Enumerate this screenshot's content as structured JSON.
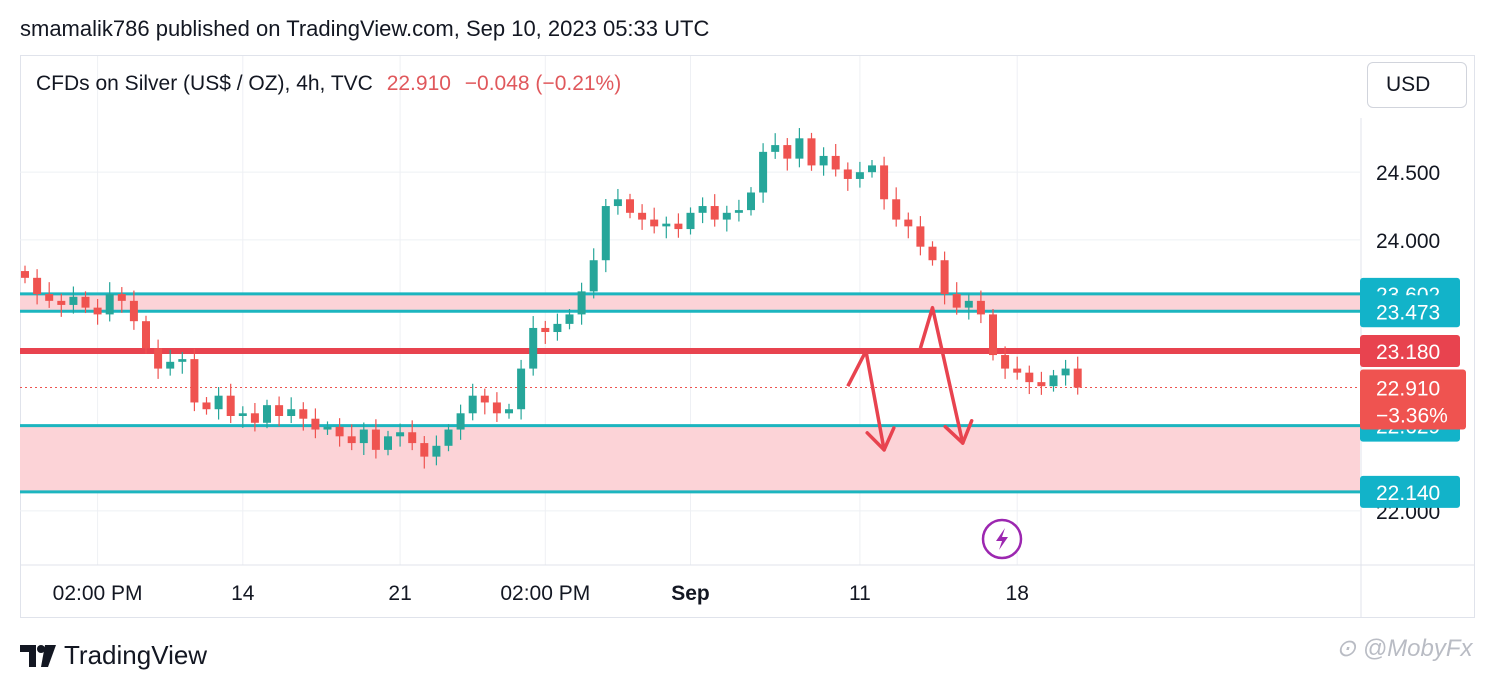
{
  "header": {
    "text": "smamalik786 published on TradingView.com, Sep 10, 2023 05:33 UTC"
  },
  "legend": {
    "symbol": "CFDs on Silver (US$ / OZ), 4h, TVC",
    "price": "22.910",
    "change": "−0.048 (−0.21%)"
  },
  "currency_button": "USD",
  "footer": {
    "brand": "TradingView",
    "watermark": "⊙ @MobyFx"
  },
  "colors": {
    "up": "#26a69a",
    "down": "#ef5350",
    "zone_fill": "#fcd3d7",
    "zone_line": "#1cb5bf",
    "resistance": "#e8434f",
    "label_teal": "#12b3c9",
    "label_red": "#e8434f",
    "lightning": "#9c27b0"
  },
  "chart_data": {
    "type": "candlestick",
    "title": "CFDs on Silver (US$ / OZ), 4h, TVC",
    "ylim": [
      21.6,
      24.9
    ],
    "y_ticks": [
      "24.500",
      "24.000",
      "22.000"
    ],
    "x_ticks": [
      "02:00 PM",
      "14",
      "21",
      "02:00 PM",
      "Sep",
      "11",
      "18"
    ],
    "grid": true,
    "current_price": 22.91,
    "current_change_label": "−3.36%",
    "price_labels": [
      {
        "value": 23.602,
        "text": "23.602",
        "kind": "zone"
      },
      {
        "value": 23.473,
        "text": "23.473",
        "kind": "zone"
      },
      {
        "value": 23.18,
        "text": "23.180",
        "kind": "resistance"
      },
      {
        "value": 22.629,
        "text": "22.629",
        "kind": "zone"
      },
      {
        "value": 22.14,
        "text": "22.140",
        "kind": "zone"
      }
    ],
    "zones": [
      {
        "top": 23.602,
        "bottom": 23.473
      },
      {
        "top": 22.629,
        "bottom": 22.14
      }
    ],
    "resistance_line": 23.18,
    "closes": [
      23.72,
      23.6,
      23.55,
      23.52,
      23.58,
      23.5,
      23.45,
      23.6,
      23.55,
      23.4,
      23.2,
      23.05,
      23.1,
      23.12,
      22.8,
      22.75,
      22.85,
      22.7,
      22.72,
      22.65,
      22.78,
      22.7,
      22.75,
      22.68,
      22.6,
      22.62,
      22.55,
      22.5,
      22.6,
      22.45,
      22.55,
      22.58,
      22.5,
      22.4,
      22.48,
      22.6,
      22.72,
      22.85,
      22.8,
      22.72,
      22.75,
      23.05,
      23.35,
      23.32,
      23.38,
      23.45,
      23.62,
      23.85,
      24.25,
      24.3,
      24.2,
      24.15,
      24.1,
      24.12,
      24.08,
      24.2,
      24.25,
      24.15,
      24.2,
      24.22,
      24.35,
      24.65,
      24.7,
      24.6,
      24.75,
      24.55,
      24.62,
      24.52,
      24.45,
      24.5,
      24.55,
      24.3,
      24.15,
      24.1,
      23.95,
      23.85,
      23.6,
      23.5,
      23.55,
      23.45,
      23.15,
      23.05,
      23.02,
      22.95,
      22.92,
      23.0,
      23.05,
      22.91
    ],
    "x_markers": [
      {
        "label": "02:00 PM",
        "index": 6
      },
      {
        "label": "14",
        "index": 18
      },
      {
        "label": "21",
        "index": 31
      },
      {
        "label": "02:00 PM",
        "index": 43
      },
      {
        "label": "Sep",
        "index": 55
      },
      {
        "label": "11",
        "index": 69
      },
      {
        "label": "18",
        "index": 82
      }
    ],
    "projection_arrows": [
      {
        "points": [
          [
            68,
            22.92
          ],
          [
            69.5,
            23.18
          ],
          [
            71,
            22.45
          ]
        ]
      },
      {
        "points": [
          [
            74,
            23.2
          ],
          [
            75,
            23.5
          ],
          [
            77.5,
            22.5
          ]
        ]
      }
    ],
    "event_marker": "lightning"
  }
}
